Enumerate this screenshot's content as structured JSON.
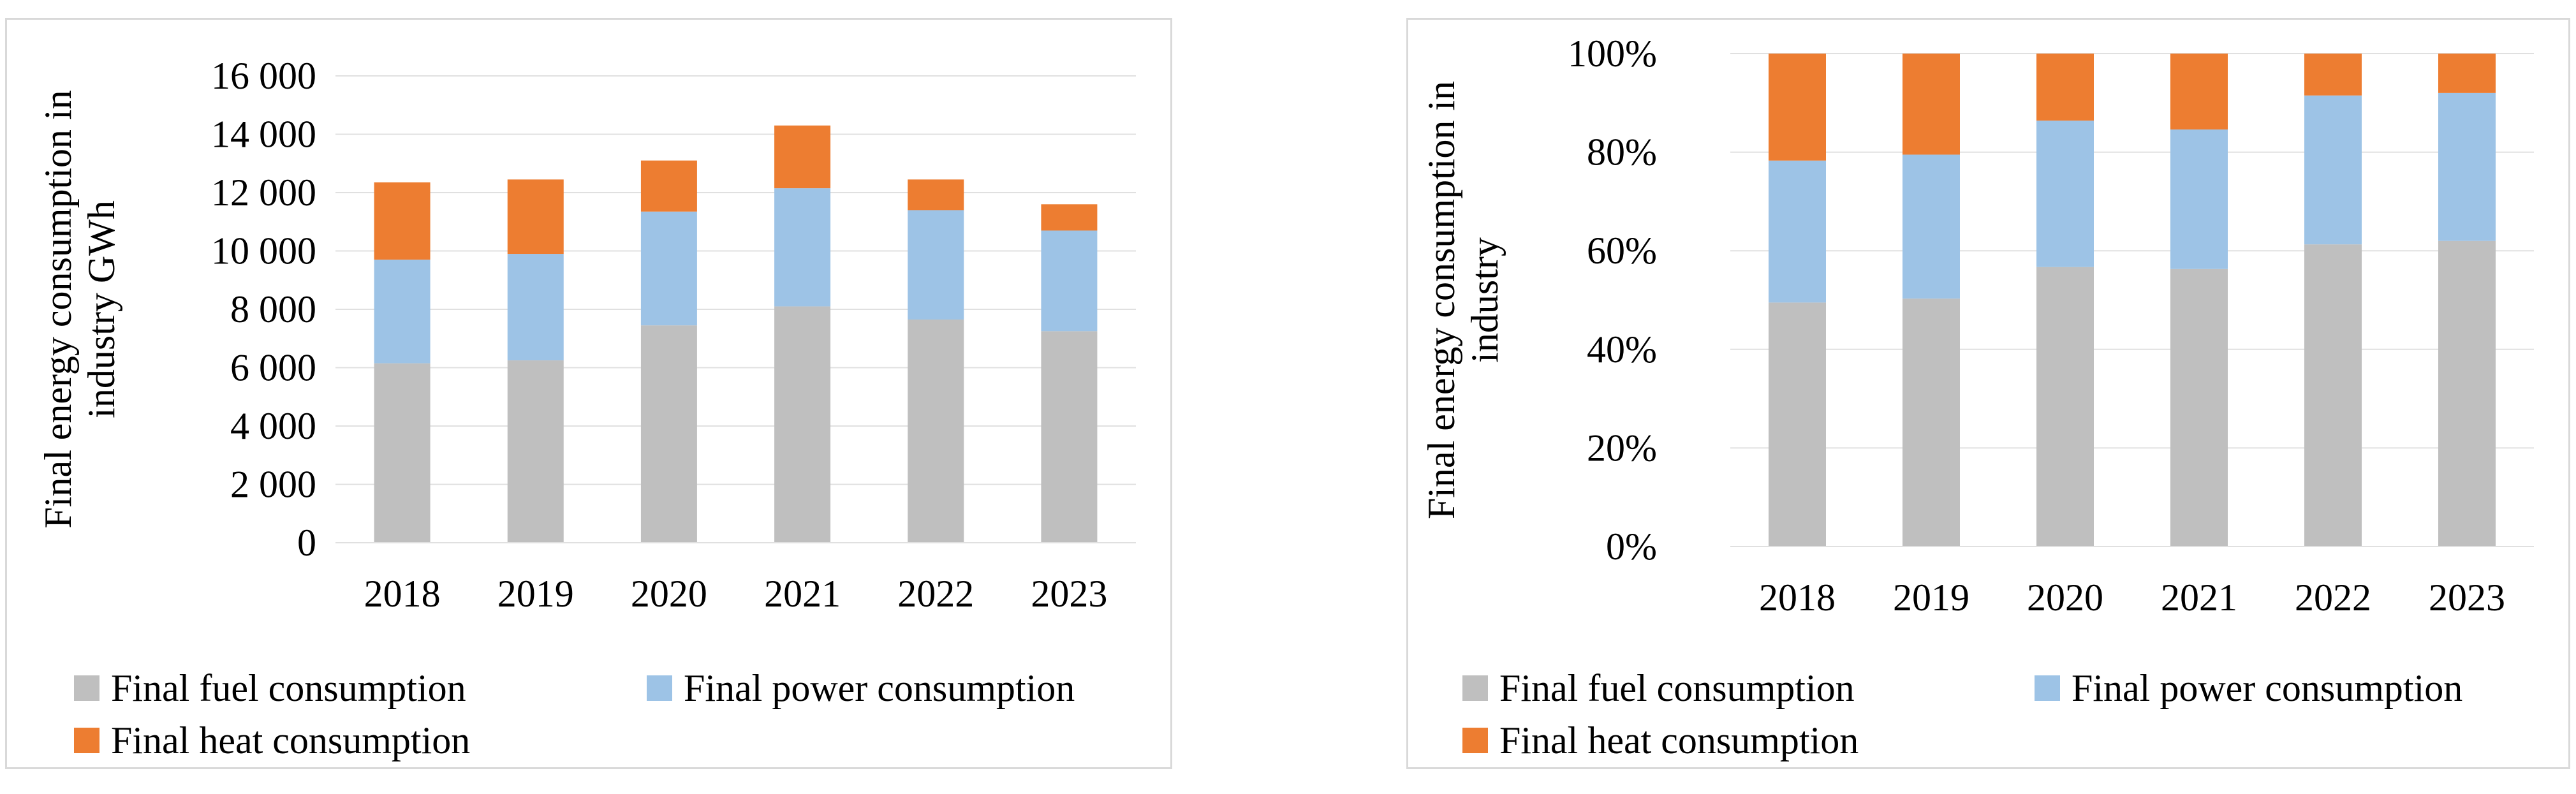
{
  "colors": {
    "fuel": "#bfbfbf",
    "power": "#9dc3e6",
    "heat": "#ed7d31",
    "grid": "#e0e0e0",
    "border": "#d9d9d9"
  },
  "chart_data": [
    {
      "type": "bar",
      "stacked": true,
      "title": "",
      "xlabel": "",
      "ylabel": "Final energy consumption in industry GWh",
      "ylabel_lines": [
        "Final energy consumption in",
        "industry GWh"
      ],
      "categories": [
        "2018",
        "2019",
        "2020",
        "2021",
        "2022",
        "2023"
      ],
      "ylim": [
        0,
        16000
      ],
      "yticks": [
        0,
        2000,
        4000,
        6000,
        8000,
        10000,
        12000,
        14000,
        16000
      ],
      "ytick_labels": [
        "0",
        "2 000",
        "4 000",
        "6 000",
        "8 000",
        "10 000",
        "12 000",
        "14 000",
        "16 000"
      ],
      "grid": true,
      "legend_position": "bottom",
      "series": [
        {
          "name": "Final fuel consumption",
          "color_key": "fuel",
          "values": [
            6150,
            6250,
            7450,
            8100,
            7650,
            7250
          ]
        },
        {
          "name": "Final power consumption",
          "color_key": "power",
          "values": [
            3550,
            3650,
            3900,
            4050,
            3750,
            3450
          ]
        },
        {
          "name": "Final heat consumption",
          "color_key": "heat",
          "values": [
            2650,
            2550,
            1750,
            2150,
            1050,
            900
          ]
        }
      ]
    },
    {
      "type": "bar",
      "stacked": true,
      "percent": true,
      "title": "",
      "xlabel": "",
      "ylabel": "Final energy consumption in industry",
      "ylabel_lines": [
        "Final energy consumption in",
        "industry"
      ],
      "categories": [
        "2018",
        "2019",
        "2020",
        "2021",
        "2022",
        "2023"
      ],
      "ylim": [
        0,
        100
      ],
      "yticks": [
        0,
        20,
        40,
        60,
        80,
        100
      ],
      "ytick_labels": [
        "0%",
        "20%",
        "40%",
        "60%",
        "80%",
        "100%"
      ],
      "grid": true,
      "legend_position": "bottom",
      "series": [
        {
          "name": "Final fuel consumption",
          "color_key": "fuel",
          "values": [
            49.5,
            50.3,
            56.7,
            56.3,
            61.3,
            62.0
          ]
        },
        {
          "name": "Final power consumption",
          "color_key": "power",
          "values": [
            28.8,
            29.2,
            29.7,
            28.3,
            30.2,
            30.0
          ]
        },
        {
          "name": "Final heat consumption",
          "color_key": "heat",
          "values": [
            21.7,
            20.5,
            13.6,
            15.4,
            8.5,
            8.0
          ]
        }
      ]
    }
  ]
}
